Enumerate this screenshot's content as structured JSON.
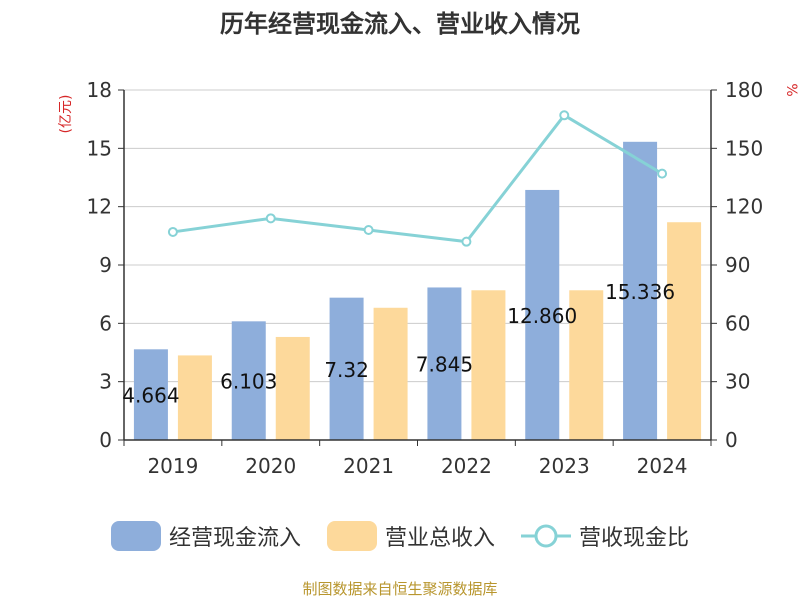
{
  "chart_data": {
    "type": "bar",
    "title": "历年经营现金流入、营业收入情况",
    "categories": [
      "2019",
      "2020",
      "2021",
      "2022",
      "2023",
      "2024"
    ],
    "series": [
      {
        "name": "经营现金流入",
        "kind": "bar",
        "axis": "left",
        "color": "#8eaedb",
        "values": [
          4.664,
          6.103,
          7.32,
          7.845,
          12.86,
          15.336
        ]
      },
      {
        "name": "营业总收入",
        "kind": "bar",
        "axis": "left",
        "color": "#fdd99b",
        "values": [
          4.35,
          5.3,
          6.8,
          7.7,
          7.7,
          11.2
        ]
      },
      {
        "name": "营收现金比",
        "kind": "line",
        "axis": "right",
        "color": "#86d2d6",
        "values": [
          107,
          114,
          108,
          102,
          167,
          137
        ]
      }
    ],
    "data_labels": [
      "4.664",
      "6.103",
      "7.32",
      "7.845",
      "12.860",
      "15.336"
    ],
    "y_left": {
      "label": "(亿元)",
      "ylim": [
        0,
        18
      ],
      "ticks": [
        "0",
        "3",
        "6",
        "9",
        "12",
        "15",
        "18"
      ]
    },
    "y_right": {
      "label": "%",
      "ylim": [
        0,
        180
      ],
      "ticks": [
        "0",
        "30",
        "60",
        "90",
        "120",
        "150",
        "180"
      ]
    },
    "grid": true,
    "legend_position": "bottom"
  },
  "source": "制图数据来自恒生聚源数据库"
}
